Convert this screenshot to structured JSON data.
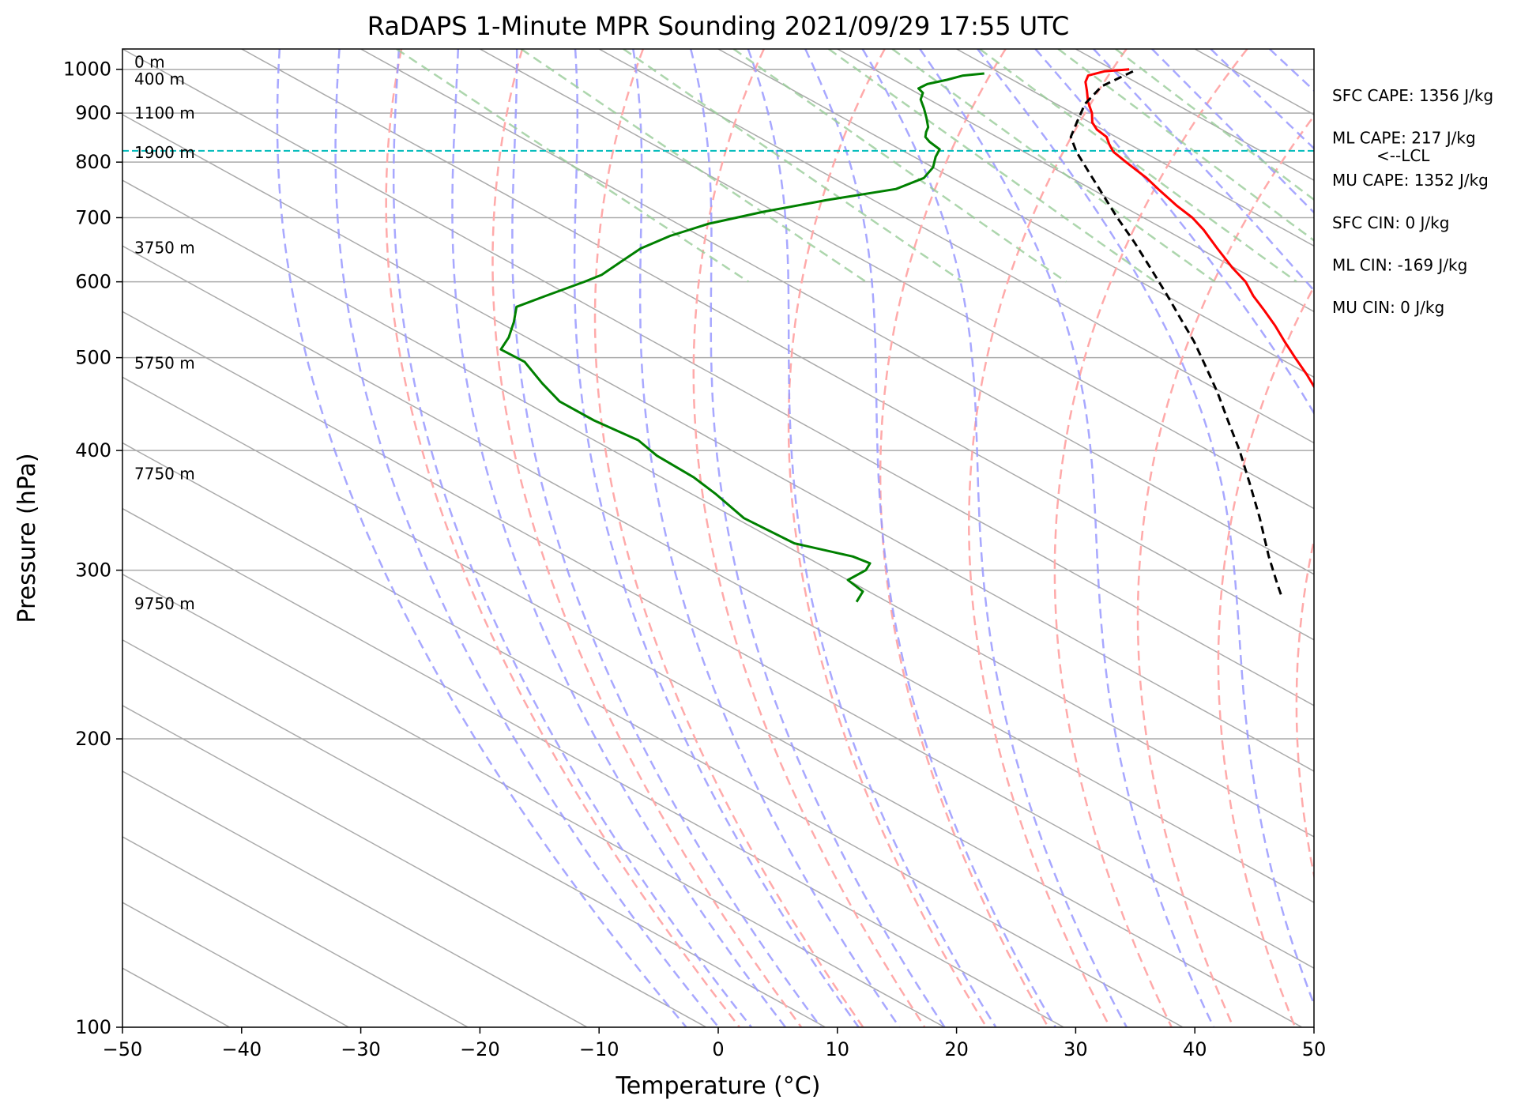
{
  "chart_data": {
    "type": "line",
    "title": "RaDAPS 1-Minute MPR Sounding 2021/09/29 17:55 UTC",
    "xlabel": "Temperature (°C)",
    "ylabel": "Pressure (hPa)",
    "xlim": [
      -50,
      50
    ],
    "ylim": [
      1050,
      100
    ],
    "y_scale": "log",
    "skew": true,
    "x_ticks": [
      "−50",
      "−40",
      "−30",
      "−20",
      "−10",
      "0",
      "10",
      "20",
      "30",
      "40",
      "50"
    ],
    "y_ticks": [
      "100",
      "200",
      "300",
      "400",
      "500",
      "600",
      "700",
      "800",
      "900",
      "1000"
    ],
    "series": [
      {
        "color": "#ff0000",
        "points": [
          [
            1000,
            31.4
          ],
          [
            995,
            29.0
          ],
          [
            985,
            27.0
          ],
          [
            970,
            25.8
          ],
          [
            950,
            24.6
          ],
          [
            925,
            23.0
          ],
          [
            900,
            21.6
          ],
          [
            880,
            20.2
          ],
          [
            865,
            19.5
          ],
          [
            850,
            19.2
          ],
          [
            835,
            18.3
          ],
          [
            820,
            17.5
          ],
          [
            800,
            17.0
          ],
          [
            770,
            16.3
          ],
          [
            750,
            15.6
          ],
          [
            720,
            14.6
          ],
          [
            700,
            14.1
          ],
          [
            680,
            13.2
          ],
          [
            650,
            11.5
          ],
          [
            620,
            9.8
          ],
          [
            600,
            8.8
          ],
          [
            580,
            7.3
          ],
          [
            560,
            6.0
          ],
          [
            540,
            4.6
          ],
          [
            520,
            3.0
          ],
          [
            500,
            1.4
          ],
          [
            480,
            -0.2
          ],
          [
            460,
            -2.0
          ],
          [
            440,
            -4.5
          ],
          [
            420,
            -7.0
          ],
          [
            400,
            -9.5
          ],
          [
            390,
            -11.0
          ],
          [
            375,
            -12.8
          ],
          [
            360,
            -15.3
          ],
          [
            345,
            -18.0
          ],
          [
            330,
            -20.3
          ],
          [
            315,
            -22.7
          ],
          [
            300,
            -25.3
          ],
          [
            290,
            -27.0
          ],
          [
            280,
            -29.2
          ]
        ]
      },
      {
        "color": "#008000",
        "points": [
          [
            990,
            18.6
          ],
          [
            985,
            16.5
          ],
          [
            975,
            14.5
          ],
          [
            965,
            12.2
          ],
          [
            955,
            10.8
          ],
          [
            945,
            10.5
          ],
          [
            930,
            9.3
          ],
          [
            910,
            8.2
          ],
          [
            890,
            7.0
          ],
          [
            870,
            5.7
          ],
          [
            860,
            4.8
          ],
          [
            850,
            4.0
          ],
          [
            840,
            3.6
          ],
          [
            825,
            3.3
          ],
          [
            810,
            1.8
          ],
          [
            790,
            0.0
          ],
          [
            770,
            -2.4
          ],
          [
            750,
            -6.4
          ],
          [
            730,
            -14.0
          ],
          [
            710,
            -21.0
          ],
          [
            690,
            -27.4
          ],
          [
            670,
            -32.5
          ],
          [
            650,
            -36.9
          ],
          [
            630,
            -40.5
          ],
          [
            610,
            -44.2
          ],
          [
            600,
            -46.7
          ],
          [
            580,
            -52.1
          ],
          [
            565,
            -56.2
          ],
          [
            545,
            -58.7
          ],
          [
            525,
            -61.5
          ],
          [
            510,
            -64.0
          ],
          [
            495,
            -63.9
          ],
          [
            470,
            -65.7
          ],
          [
            450,
            -67.0
          ],
          [
            430,
            -67.0
          ],
          [
            410,
            -66.3
          ],
          [
            395,
            -67.1
          ],
          [
            375,
            -67.3
          ],
          [
            360,
            -68.0
          ],
          [
            340,
            -69.3
          ],
          [
            320,
            -68.9
          ],
          [
            310,
            -66.0
          ],
          [
            305,
            -65.6
          ],
          [
            300,
            -67.0
          ],
          [
            293,
            -70.0
          ],
          [
            285,
            -70.5
          ],
          [
            278,
            -72.6
          ]
        ]
      },
      {
        "color": "#000000",
        "dash": "dashed",
        "points": [
          [
            995,
            31.4
          ],
          [
            960,
            26.5
          ],
          [
            920,
            22.4
          ],
          [
            880,
            18.9
          ],
          [
            850,
            16.2
          ],
          [
            820,
            14.4
          ],
          [
            780,
            12.3
          ],
          [
            740,
            10.1
          ],
          [
            700,
            7.8
          ],
          [
            660,
            5.5
          ],
          [
            620,
            2.9
          ],
          [
            580,
            0.1
          ],
          [
            550,
            -2.2
          ],
          [
            520,
            -4.6
          ],
          [
            490,
            -7.4
          ],
          [
            460,
            -10.4
          ],
          [
            430,
            -13.8
          ],
          [
            400,
            -17.4
          ],
          [
            370,
            -21.5
          ],
          [
            340,
            -26.0
          ],
          [
            310,
            -31.1
          ],
          [
            290,
            -34.6
          ],
          [
            280,
            -36.4
          ]
        ]
      }
    ],
    "annotations": {
      "lcl_pressure": 822,
      "lcl_label": "<--LCL",
      "heights": [
        {
          "label": "0 m",
          "p": 1000
        },
        {
          "label": "400 m",
          "p": 960
        },
        {
          "label": "1100 m",
          "p": 885
        },
        {
          "label": "1900 m",
          "p": 805
        },
        {
          "label": "3750 m",
          "p": 640
        },
        {
          "label": "5750 m",
          "p": 485
        },
        {
          "label": "7750 m",
          "p": 372
        },
        {
          "label": "9750 m",
          "p": 272
        }
      ],
      "stats": [
        "SFC CAPE: 1356 J/kg",
        "ML CAPE: 217 J/kg",
        "MU CAPE: 1352 J/kg",
        "SFC CIN: 0 J/kg",
        "ML CIN: -169 J/kg",
        "MU CIN: 0 J/kg"
      ]
    },
    "colors": {
      "isotherm": "#aaaaaa",
      "dry_adiabat": "#ffaaaa",
      "moist_adiabat": "#9999ff",
      "mixing_ratio": "#99cc99",
      "lcl_line": "#00bbbb"
    }
  }
}
